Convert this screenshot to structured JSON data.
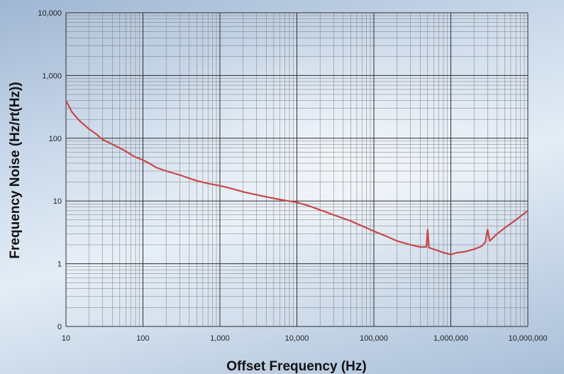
{
  "chart_data": {
    "type": "line",
    "xlabel": "Offset Frequency (Hz)",
    "ylabel": "Frequency Noise (Hz/rt(Hz))",
    "x_scale": "log",
    "y_scale": "log",
    "xlim": [
      10,
      10000000
    ],
    "ylim": [
      0.1,
      10000
    ],
    "grid": true,
    "x_tick_labels": [
      "10",
      "100",
      "1,000",
      "10,000",
      "100,000",
      "1,000,000",
      "10,000,000"
    ],
    "y_tick_labels": [
      "0",
      "1",
      "10",
      "100",
      "1,000",
      "10,000"
    ],
    "y_tick_values": [
      0.1,
      1,
      10,
      100,
      1000,
      10000
    ],
    "series": [
      {
        "color": "#c8484a",
        "x": [
          10,
          12,
          15,
          20,
          25,
          30,
          40,
          50,
          60,
          70,
          80,
          100,
          120,
          150,
          200,
          300,
          400,
          500,
          700,
          1000,
          1500,
          2000,
          3000,
          5000,
          7000,
          10000,
          15000,
          20000,
          30000,
          50000,
          70000,
          100000,
          150000,
          200000,
          300000,
          400000,
          480000,
          500000,
          520000,
          600000,
          700000,
          800000,
          900000,
          1000000,
          1200000,
          1500000,
          2000000,
          2500000,
          2800000,
          3000000,
          3200000,
          4000000,
          5000000,
          7000000,
          10000000
        ],
        "y": [
          400,
          260,
          190,
          140,
          115,
          95,
          80,
          70,
          62,
          55,
          50,
          45,
          40,
          34,
          30,
          26,
          23,
          21,
          19,
          17.5,
          15.5,
          14,
          12.5,
          11,
          10.2,
          9.5,
          8.2,
          7.2,
          6,
          4.8,
          4,
          3.3,
          2.7,
          2.3,
          2,
          1.85,
          1.85,
          3.5,
          1.8,
          1.7,
          1.6,
          1.5,
          1.45,
          1.4,
          1.5,
          1.55,
          1.7,
          1.9,
          2.2,
          3.5,
          2.3,
          3,
          3.7,
          5,
          7
        ]
      }
    ]
  }
}
